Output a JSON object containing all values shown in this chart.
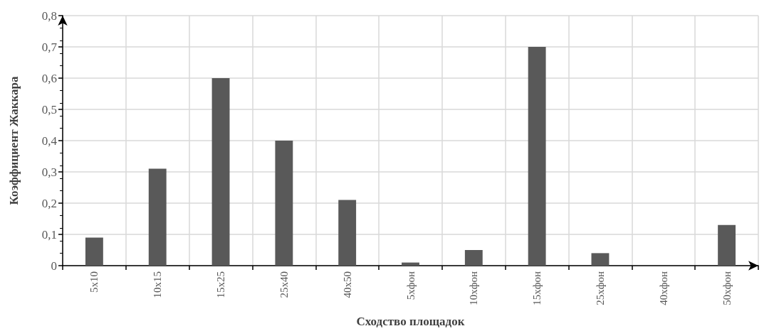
{
  "chart_data": {
    "type": "bar",
    "xlabel": "Сходство площадок",
    "ylabel": "Коэффициент Жаккара",
    "categories": [
      "5x10",
      "10x15",
      "15x25",
      "25x40",
      "40x50",
      "5xфон",
      "10xфон",
      "15xфон",
      "25xфон",
      "40xфон",
      "50xфон"
    ],
    "values": [
      0.09,
      0.31,
      0.6,
      0.4,
      0.21,
      0.01,
      0.05,
      0.7,
      0.04,
      0,
      0.13
    ],
    "color": "#595959",
    "ylim": [
      0,
      0.8
    ],
    "yticks": [
      0,
      {
        "value": 0.1,
        "label": "0,1"
      },
      {
        "value": 0.2,
        "label": "0,2"
      },
      {
        "value": 0.3,
        "label": "0,3"
      },
      {
        "value": 0.4,
        "label": "0,4"
      },
      {
        "value": 0.5,
        "label": "0,5"
      },
      {
        "value": 0.6,
        "label": "0,6"
      },
      {
        "value": 0.7,
        "label": "0,7"
      },
      {
        "value": 0.8,
        "label": "0,8"
      }
    ],
    "grid": true
  }
}
